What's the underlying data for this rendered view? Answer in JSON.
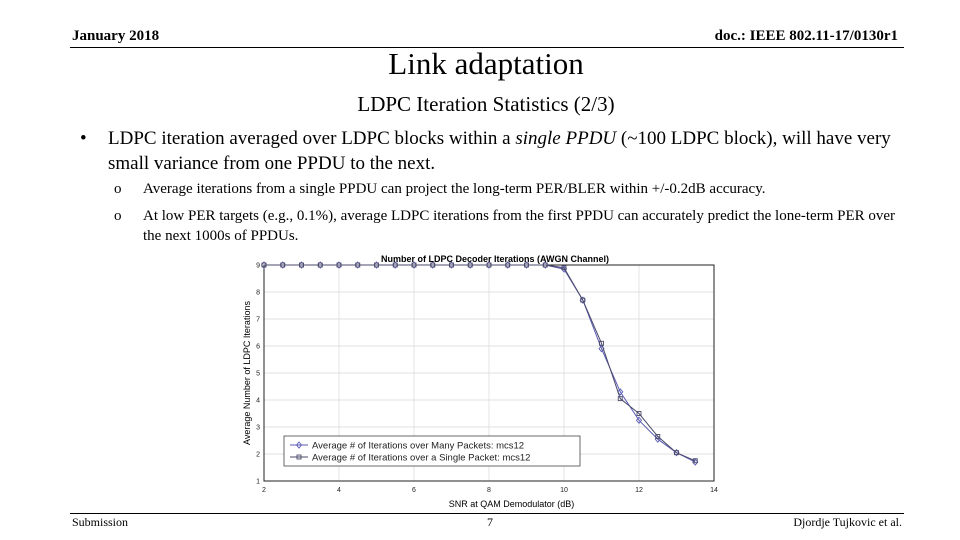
{
  "header": {
    "left": "January 2018",
    "right": "doc.: IEEE 802.11-17/0130r1"
  },
  "title": "Link adaptation",
  "subtitle": "LDPC Iteration Statistics (2/3)",
  "bullet": {
    "marker": "•",
    "text_pre": "LDPC iteration averaged over LDPC blocks within a ",
    "text_em": "single PPDU",
    "text_post": " (~100 LDPC block), will have very small variance from one PPDU to the next."
  },
  "subbullets": [
    {
      "marker": "o",
      "text": "Average iterations from a single PPDU can project the long-term PER/BLER within +/-0.2dB accuracy."
    },
    {
      "marker": "o",
      "text": "At low PER targets (e.g., 0.1%), average LDPC iterations from the first PPDU can accurately predict the lone-term PER over the next 1000s of PPDUs."
    }
  ],
  "chart_data": {
    "type": "line",
    "title": "Number of LDPC Decoder Iterations (AWGN Channel)",
    "xlabel": "SNR at QAM Demodulator (dB)",
    "ylabel": "Average Number of LDPC Iterations",
    "xlim": [
      2,
      14
    ],
    "ylim": [
      1,
      9
    ],
    "xticks": [
      2,
      4,
      6,
      8,
      10,
      12,
      14
    ],
    "yticks": [
      1,
      2,
      3,
      4,
      5,
      6,
      7,
      8,
      9
    ],
    "grid": true,
    "legend": "bottom-left",
    "series": [
      {
        "name": "Average # of Iterations over Many Packets: mcs12",
        "marker": "diamond",
        "color": "#5a5ab4",
        "x": [
          2,
          2.5,
          3,
          3.5,
          4,
          4.5,
          5,
          5.5,
          6,
          6.5,
          7,
          7.5,
          8,
          8.5,
          9,
          9.5,
          10,
          10.5,
          11,
          11.5,
          12,
          12.5,
          13,
          13.5
        ],
        "y": [
          9,
          9,
          9,
          9,
          9,
          9,
          9,
          9,
          9,
          9,
          9,
          9,
          9,
          9,
          9,
          9,
          8.85,
          7.7,
          5.9,
          4.3,
          3.25,
          2.55,
          2.05,
          1.7
        ]
      },
      {
        "name": "Average # of Iterations over a Single Packet: mcs12",
        "marker": "square",
        "color": "#4a4a6a",
        "x": [
          2,
          2.5,
          3,
          3.5,
          4,
          4.5,
          5,
          5.5,
          6,
          6.5,
          7,
          7.5,
          8,
          8.5,
          9,
          9.5,
          10,
          10.5,
          11,
          11.5,
          12,
          12.5,
          13,
          13.5
        ],
        "y": [
          9,
          9,
          9,
          9,
          9,
          9,
          9,
          9,
          9,
          9,
          9,
          9,
          9,
          9,
          9,
          9,
          8.9,
          7.7,
          6.1,
          4.05,
          3.5,
          2.65,
          2.05,
          1.75
        ]
      }
    ]
  },
  "footer": {
    "left": "Submission",
    "page": "7",
    "right": "Djordje Tujkovic et al."
  }
}
